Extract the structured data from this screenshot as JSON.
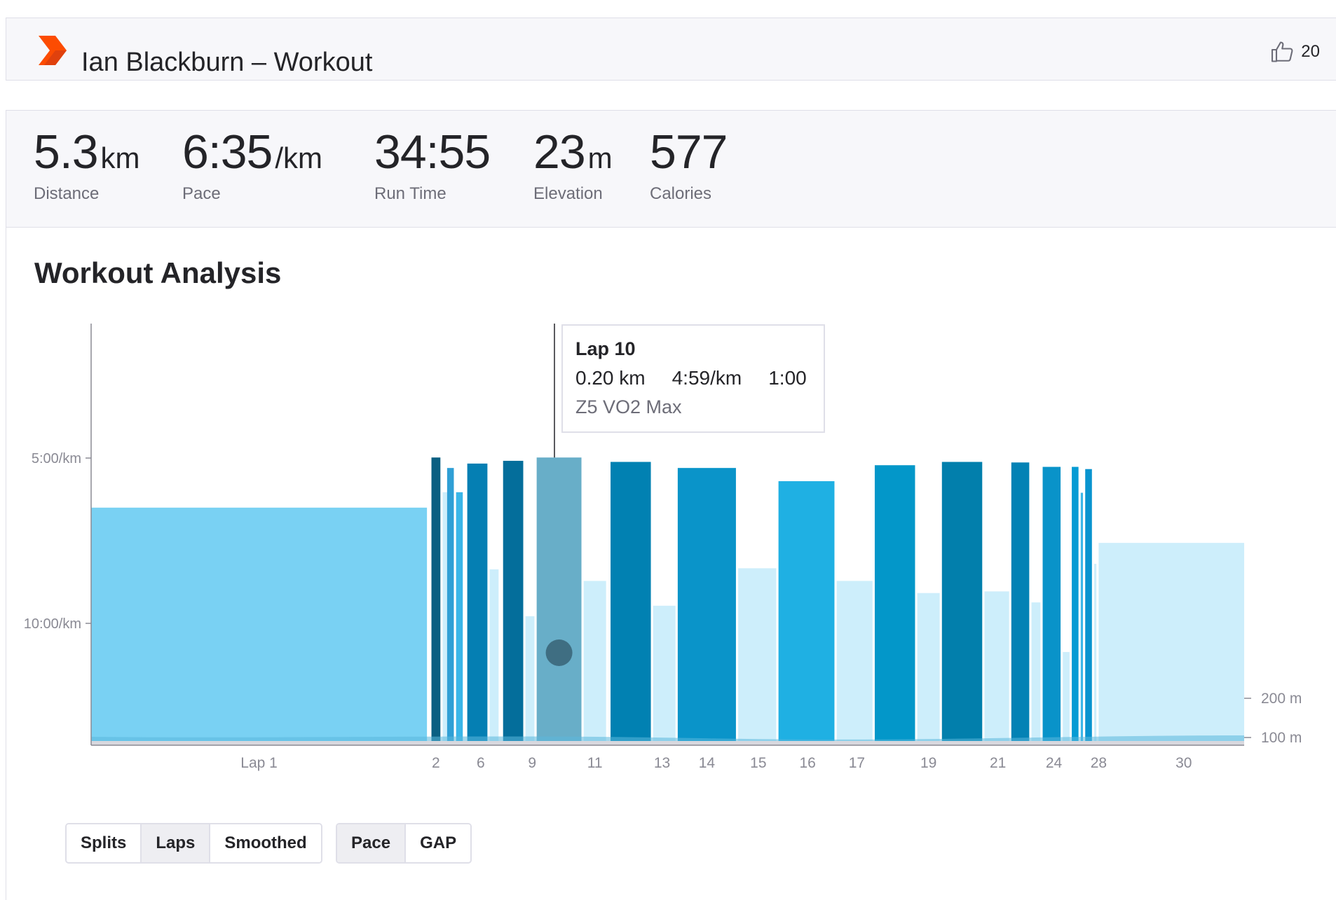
{
  "header": {
    "title": "Ian Blackburn – Workout",
    "kudos_count": "20",
    "brand_color": "#fc4c02"
  },
  "stats": [
    {
      "value": "5.3",
      "unit": "km",
      "label": "Distance"
    },
    {
      "value": "6:35",
      "unit": "/km",
      "label": "Pace"
    },
    {
      "value": "34:55",
      "unit": "",
      "label": "Run Time"
    },
    {
      "value": "23",
      "unit": "m",
      "label": "Elevation"
    },
    {
      "value": "577",
      "unit": "",
      "label": "Calories"
    }
  ],
  "analysis": {
    "title": "Workout Analysis",
    "tooltip": {
      "lap": "Lap 10",
      "distance": "0.20 km",
      "pace": "4:59/km",
      "time": "1:00",
      "zone": "Z5 VO2 Max"
    },
    "view_buttons": [
      {
        "label": "Splits",
        "active": false
      },
      {
        "label": "Laps",
        "active": true
      },
      {
        "label": "Smoothed",
        "active": false
      }
    ],
    "metric_buttons": [
      {
        "label": "Pace",
        "active": true
      },
      {
        "label": "GAP",
        "active": false
      }
    ]
  },
  "chart_data": {
    "type": "bar",
    "x_scale": "cumulative distance (km)",
    "y_axis": {
      "label_ticks": [
        "5:00/km",
        "10:00/km"
      ],
      "tick_values_sec_per_km": [
        300,
        600
      ],
      "inverted": true
    },
    "elevation_axis": {
      "ticks": [
        "200 m",
        "100 m"
      ],
      "tick_values_m": [
        200,
        100
      ]
    },
    "x_tick_labels": [
      {
        "label": "Lap 1",
        "x": 0.75
      },
      {
        "label": "2",
        "x": 1.54
      },
      {
        "label": "6",
        "x": 1.74
      },
      {
        "label": "9",
        "x": 1.97
      },
      {
        "label": "11",
        "x": 2.25
      },
      {
        "label": "13",
        "x": 2.55
      },
      {
        "label": "14",
        "x": 2.75
      },
      {
        "label": "15",
        "x": 2.98
      },
      {
        "label": "16",
        "x": 3.2
      },
      {
        "label": "17",
        "x": 3.42
      },
      {
        "label": "19",
        "x": 3.74
      },
      {
        "label": "21",
        "x": 4.05
      },
      {
        "label": "24",
        "x": 4.3
      },
      {
        "label": "28",
        "x": 4.5
      },
      {
        "label": "30",
        "x": 4.88
      }
    ],
    "laps": [
      {
        "lap": 1,
        "start": 0.0,
        "end": 1.5,
        "pace": 390,
        "color": "#79d1f3"
      },
      {
        "lap": 2,
        "start": 1.52,
        "end": 1.56,
        "pace": 299,
        "color": "#0a5f82"
      },
      {
        "lap": 3,
        "start": 1.57,
        "end": 1.59,
        "pace": 362,
        "color": "#cdeefb"
      },
      {
        "lap": 4,
        "start": 1.59,
        "end": 1.62,
        "pace": 318,
        "color": "#2f9fd5"
      },
      {
        "lap": 5,
        "start": 1.63,
        "end": 1.66,
        "pace": 362,
        "color": "#3bb6e8"
      },
      {
        "lap": 6,
        "start": 1.68,
        "end": 1.77,
        "pace": 310,
        "color": "#057fb3"
      },
      {
        "lap": 7,
        "start": 1.78,
        "end": 1.82,
        "pace": 502,
        "color": "#cdeefb"
      },
      {
        "lap": 8,
        "start": 1.84,
        "end": 1.93,
        "pace": 305,
        "color": "#046e9b"
      },
      {
        "lap": 9,
        "start": 1.94,
        "end": 1.98,
        "pace": 587,
        "color": "#cdeefb"
      },
      {
        "lap": 10,
        "start": 1.99,
        "end": 2.19,
        "pace": 299,
        "color": "#68aec8"
      },
      {
        "lap": 11,
        "start": 2.2,
        "end": 2.3,
        "pace": 523,
        "color": "#cdeefb"
      },
      {
        "lap": 12,
        "start": 2.32,
        "end": 2.5,
        "pace": 307,
        "color": "#0181b2"
      },
      {
        "lap": 13,
        "start": 2.51,
        "end": 2.61,
        "pace": 568,
        "color": "#cdeefb"
      },
      {
        "lap": 14,
        "start": 2.62,
        "end": 2.88,
        "pace": 318,
        "color": "#0a94c9"
      },
      {
        "lap": 15,
        "start": 2.89,
        "end": 3.06,
        "pace": 500,
        "color": "#cdeefb"
      },
      {
        "lap": 16,
        "start": 3.07,
        "end": 3.32,
        "pace": 342,
        "color": "#1fb0e3"
      },
      {
        "lap": 17,
        "start": 3.33,
        "end": 3.49,
        "pace": 523,
        "color": "#cdeefb"
      },
      {
        "lap": 18,
        "start": 3.5,
        "end": 3.68,
        "pace": 313,
        "color": "#0397c9"
      },
      {
        "lap": 19,
        "start": 3.69,
        "end": 3.79,
        "pace": 545,
        "color": "#cdeefb"
      },
      {
        "lap": 20,
        "start": 3.8,
        "end": 3.98,
        "pace": 307,
        "color": "#027fac"
      },
      {
        "lap": 21,
        "start": 3.99,
        "end": 4.1,
        "pace": 542,
        "color": "#cdeefb"
      },
      {
        "lap": 22,
        "start": 4.11,
        "end": 4.19,
        "pace": 308,
        "color": "#0382b5"
      },
      {
        "lap": 23,
        "start": 4.2,
        "end": 4.24,
        "pace": 562,
        "color": "#cdeefb"
      },
      {
        "lap": 24,
        "start": 4.25,
        "end": 4.33,
        "pace": 316,
        "color": "#0993c9"
      },
      {
        "lap": 25,
        "start": 4.34,
        "end": 4.37,
        "pace": 652,
        "color": "#cdeefb"
      },
      {
        "lap": 26,
        "start": 4.38,
        "end": 4.41,
        "pace": 316,
        "color": "#069bd4"
      },
      {
        "lap": 27,
        "start": 4.42,
        "end": 4.43,
        "pace": 363,
        "color": "#3bb6e8"
      },
      {
        "lap": 28,
        "start": 4.44,
        "end": 4.47,
        "pace": 320,
        "color": "#0a94cf"
      },
      {
        "lap": 29,
        "start": 4.48,
        "end": 4.49,
        "pace": 492,
        "color": "#cdeefb"
      },
      {
        "lap": 30,
        "start": 4.5,
        "end": 5.15,
        "pace": 454,
        "color": "#cdeefb"
      }
    ]
  }
}
